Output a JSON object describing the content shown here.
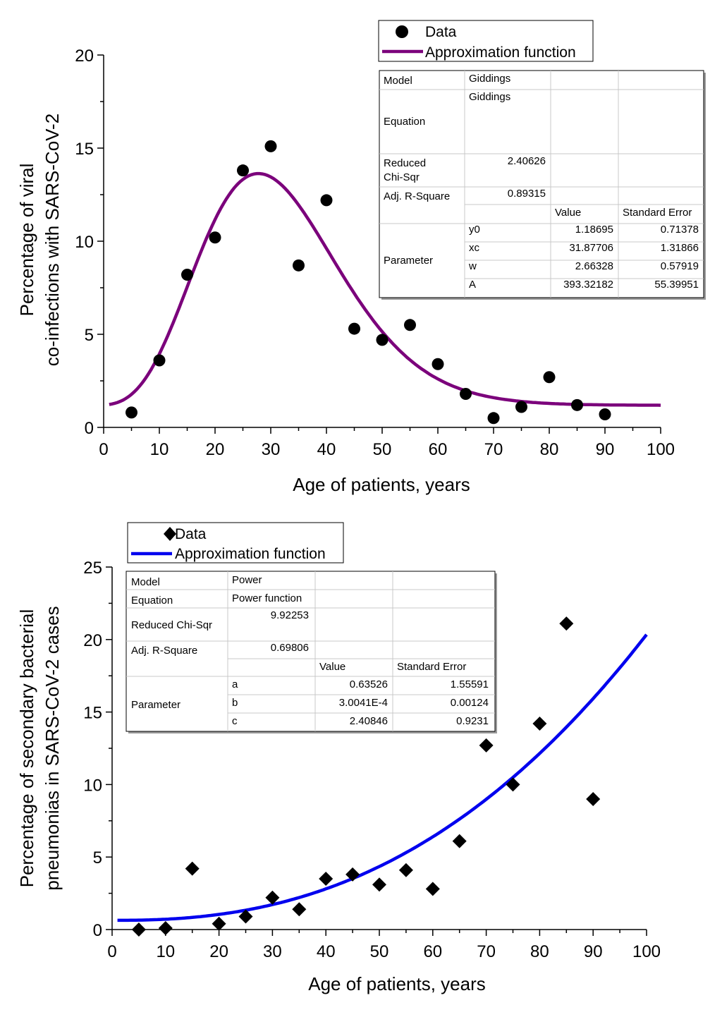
{
  "chart_data": [
    {
      "type": "scatter",
      "marker": "circle",
      "xlabel": "Age of patients, years",
      "ylabel": [
        "Percentage of viral",
        "co-infections with SARS-CoV-2"
      ],
      "xlim": [
        0,
        100
      ],
      "ylim": [
        0,
        20
      ],
      "xticks": [
        0,
        10,
        20,
        30,
        40,
        50,
        60,
        70,
        80,
        90,
        100
      ],
      "yticks": [
        0,
        5,
        10,
        15,
        20
      ],
      "legend": {
        "data_label": "Data",
        "fit_label": "Approximation function",
        "placement": "top-right"
      },
      "colors": {
        "fit": "#7b007b",
        "points": "#000000"
      },
      "x": [
        5,
        10,
        15,
        20,
        25,
        30,
        35,
        40,
        45,
        50,
        55,
        60,
        65,
        70,
        75,
        80,
        85,
        90
      ],
      "y": [
        0.8,
        3.6,
        8.2,
        10.2,
        13.8,
        15.1,
        8.7,
        12.2,
        5.3,
        4.7,
        5.5,
        3.4,
        1.8,
        0.5,
        1.1,
        2.7,
        1.2,
        0.7
      ],
      "fit": {
        "model": "Giddings",
        "y0": 1.18695,
        "xc": 31.87706,
        "w": 2.66328,
        "A": 393.32182,
        "x_range": [
          1,
          100
        ]
      },
      "stats_table": {
        "model_label": "Model",
        "model_value": "Giddings",
        "equation_label": "Equation",
        "equation_value": "Giddings",
        "chisq_label": "Reduced Chi-Sqr",
        "chisq_value": "2.40626",
        "r2_label": "Adj. R-Square",
        "r2_value": "0.89315",
        "value_header": "Value",
        "error_header": "Standard Error",
        "parameter_label": "Parameter",
        "params": [
          {
            "name": "y0",
            "value": "1.18695",
            "error": "0.71378"
          },
          {
            "name": "xc",
            "value": "31.87706",
            "error": "1.31866"
          },
          {
            "name": "w",
            "value": "2.66328",
            "error": "0.57919"
          },
          {
            "name": "A",
            "value": "393.32182",
            "error": "55.39951"
          }
        ]
      }
    },
    {
      "type": "scatter",
      "marker": "diamond",
      "xlabel": "Age of patients, years",
      "ylabel": [
        "Percentage of secondary bacterial",
        "pneumonias in SARS-CoV-2 cases"
      ],
      "xlim": [
        0,
        100
      ],
      "ylim": [
        0,
        25
      ],
      "xticks": [
        0,
        10,
        20,
        30,
        40,
        50,
        60,
        70,
        80,
        90,
        100
      ],
      "yticks": [
        0,
        5,
        10,
        15,
        20,
        25
      ],
      "legend": {
        "data_label": "Data",
        "fit_label": "Approximation function",
        "placement": "top-left"
      },
      "colors": {
        "fit": "#0000ee",
        "points": "#000000"
      },
      "x": [
        5,
        10,
        15,
        20,
        25,
        30,
        35,
        40,
        45,
        50,
        55,
        60,
        65,
        70,
        75,
        80,
        85,
        90
      ],
      "y": [
        0.0,
        0.1,
        4.2,
        0.4,
        0.9,
        2.2,
        1.4,
        3.5,
        3.8,
        3.1,
        4.1,
        2.8,
        6.1,
        12.7,
        10.0,
        14.2,
        21.1,
        9.0
      ],
      "fit": {
        "model": "Power",
        "a": 0.63526,
        "b": 0.00030041,
        "c": 2.40846,
        "x_range": [
          1,
          100
        ]
      },
      "stats_table": {
        "model_label": "Model",
        "model_value": "Power",
        "equation_label": "Equation",
        "equation_value": "Power function",
        "chisq_label": "Reduced Chi-Sqr",
        "chisq_value": "9.92253",
        "r2_label": "Adj. R-Square",
        "r2_value": "0.69806",
        "value_header": "Value",
        "error_header": "Standard Error",
        "parameter_label": "Parameter",
        "params": [
          {
            "name": "a",
            "value": "0.63526",
            "error": "1.55591"
          },
          {
            "name": "b",
            "value": "3.0041E-4",
            "error": "0.00124"
          },
          {
            "name": "c",
            "value": "2.40846",
            "error": "0.9231"
          }
        ]
      }
    }
  ]
}
